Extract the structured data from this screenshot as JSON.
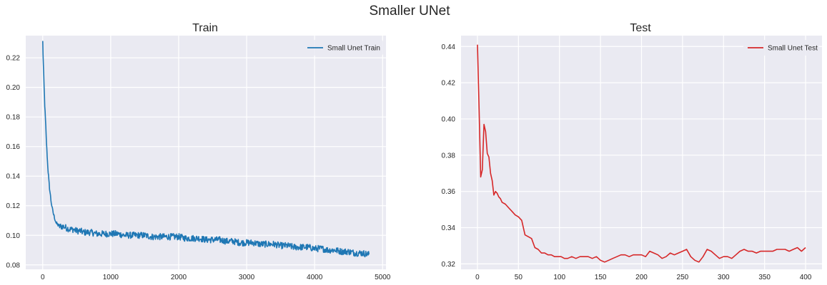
{
  "figure": {
    "title": "Smaller UNet",
    "background": "#ffffff",
    "axes_facecolor": "#eaeaf2",
    "grid_color": "#ffffff"
  },
  "chart_data": [
    {
      "type": "line",
      "title": "Train",
      "xlabel": "",
      "ylabel": "",
      "xlim": [
        -250,
        5050
      ],
      "ylim": [
        0.077,
        0.235
      ],
      "xticks": [
        0,
        1000,
        2000,
        3000,
        4000,
        5000
      ],
      "xtick_labels": [
        "0",
        "1000",
        "2000",
        "3000",
        "4000",
        "5000"
      ],
      "yticks": [
        0.08,
        0.1,
        0.12,
        0.14,
        0.16,
        0.18,
        0.2,
        0.22
      ],
      "ytick_labels": [
        "0.08",
        "0.10",
        "0.12",
        "0.14",
        "0.16",
        "0.18",
        "0.20",
        "0.22"
      ],
      "grid": true,
      "legend": {
        "placement": "top-right"
      },
      "series": [
        {
          "name": "Small Unet Train",
          "color": "#1f77b4",
          "x": [
            0,
            10,
            20,
            30,
            40,
            50,
            60,
            70,
            80,
            90,
            100,
            120,
            140,
            160,
            180,
            200,
            225,
            250,
            275,
            300,
            350,
            400,
            450,
            500,
            550,
            600,
            700,
            800,
            900,
            1000,
            1100,
            1200,
            1300,
            1400,
            1500,
            1600,
            1700,
            1800,
            1900,
            2000,
            2100,
            2200,
            2300,
            2400,
            2500,
            2600,
            2700,
            2800,
            2900,
            3000,
            3100,
            3200,
            3300,
            3400,
            3500,
            3600,
            3700,
            3800,
            3900,
            4000,
            4100,
            4200,
            4300,
            4400,
            4500,
            4600,
            4700,
            4800
          ],
          "values": [
            0.231,
            0.215,
            0.2,
            0.188,
            0.178,
            0.168,
            0.158,
            0.15,
            0.143,
            0.137,
            0.132,
            0.124,
            0.118,
            0.114,
            0.111,
            0.108,
            0.107,
            0.106,
            0.106,
            0.106,
            0.105,
            0.104,
            0.104,
            0.103,
            0.103,
            0.102,
            0.102,
            0.101,
            0.101,
            0.101,
            0.101,
            0.1,
            0.1,
            0.1,
            0.1,
            0.099,
            0.099,
            0.099,
            0.099,
            0.099,
            0.098,
            0.098,
            0.098,
            0.097,
            0.097,
            0.097,
            0.096,
            0.096,
            0.095,
            0.095,
            0.095,
            0.094,
            0.094,
            0.094,
            0.093,
            0.093,
            0.092,
            0.092,
            0.092,
            0.091,
            0.091,
            0.09,
            0.09,
            0.089,
            0.089,
            0.088,
            0.088,
            0.087
          ],
          "noise_amplitude": 0.0022
        }
      ]
    },
    {
      "type": "line",
      "title": "Test",
      "xlabel": "",
      "ylabel": "",
      "xlim": [
        -20,
        420
      ],
      "ylim": [
        0.317,
        0.446
      ],
      "xticks": [
        0,
        50,
        100,
        150,
        200,
        250,
        300,
        350,
        400
      ],
      "xtick_labels": [
        "0",
        "50",
        "100",
        "150",
        "200",
        "250",
        "300",
        "350",
        "400"
      ],
      "yticks": [
        0.32,
        0.34,
        0.36,
        0.38,
        0.4,
        0.42,
        0.44
      ],
      "ytick_labels": [
        "0.32",
        "0.34",
        "0.36",
        "0.38",
        "0.40",
        "0.42",
        "0.44"
      ],
      "grid": true,
      "legend": {
        "placement": "top-right"
      },
      "series": [
        {
          "name": "Small Unet Test",
          "color": "#d62728",
          "x": [
            0,
            2,
            4,
            6,
            8,
            10,
            12,
            14,
            16,
            18,
            20,
            22,
            24,
            26,
            28,
            30,
            34,
            38,
            42,
            46,
            50,
            54,
            58,
            62,
            66,
            70,
            74,
            78,
            82,
            86,
            90,
            94,
            98,
            102,
            106,
            110,
            115,
            120,
            125,
            130,
            135,
            140,
            145,
            150,
            155,
            160,
            165,
            170,
            175,
            180,
            185,
            190,
            195,
            200,
            205,
            210,
            215,
            220,
            225,
            230,
            235,
            240,
            245,
            250,
            255,
            260,
            265,
            270,
            275,
            280,
            285,
            290,
            295,
            300,
            305,
            310,
            315,
            320,
            325,
            330,
            335,
            340,
            345,
            350,
            355,
            360,
            365,
            370,
            375,
            380,
            385,
            390,
            395,
            400
          ],
          "values": [
            0.441,
            0.405,
            0.368,
            0.372,
            0.397,
            0.393,
            0.381,
            0.379,
            0.37,
            0.366,
            0.358,
            0.36,
            0.359,
            0.357,
            0.356,
            0.354,
            0.353,
            0.351,
            0.349,
            0.347,
            0.346,
            0.344,
            0.336,
            0.335,
            0.334,
            0.329,
            0.328,
            0.326,
            0.326,
            0.325,
            0.325,
            0.324,
            0.324,
            0.324,
            0.323,
            0.323,
            0.324,
            0.323,
            0.324,
            0.324,
            0.324,
            0.323,
            0.324,
            0.322,
            0.321,
            0.322,
            0.323,
            0.324,
            0.325,
            0.325,
            0.324,
            0.325,
            0.325,
            0.325,
            0.324,
            0.327,
            0.326,
            0.325,
            0.323,
            0.324,
            0.326,
            0.325,
            0.326,
            0.327,
            0.328,
            0.324,
            0.322,
            0.321,
            0.324,
            0.328,
            0.327,
            0.325,
            0.323,
            0.324,
            0.324,
            0.323,
            0.325,
            0.327,
            0.328,
            0.327,
            0.327,
            0.326,
            0.327,
            0.327,
            0.327,
            0.327,
            0.328,
            0.328,
            0.328,
            0.327,
            0.328,
            0.329,
            0.327,
            0.329
          ]
        }
      ]
    }
  ]
}
